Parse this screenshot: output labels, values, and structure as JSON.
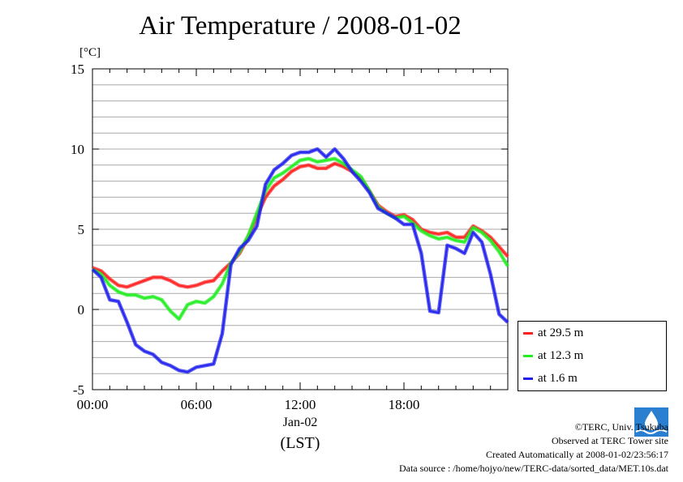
{
  "chart_data": {
    "type": "line",
    "title": "Air Temperature / 2008-01-02",
    "ylabel": "[°C]",
    "x_range_hours": [
      0,
      24
    ],
    "ylim": [
      -5,
      15
    ],
    "yticks": [
      -5,
      0,
      5,
      10,
      15
    ],
    "xtick_labels": [
      "00:00",
      "06:00",
      "12:00",
      "18:00"
    ],
    "xtick_sublabel": "Jan-02",
    "xlabel": "(LST)",
    "grid": true,
    "legend_position": "bottom-right-outside",
    "series": [
      {
        "name": "at 29.5 m",
        "color": "#ff2020",
        "x": [
          0,
          0.5,
          1,
          1.5,
          2,
          2.5,
          3,
          3.5,
          4,
          4.5,
          5,
          5.5,
          6,
          6.5,
          7,
          7.5,
          8,
          8.5,
          9,
          9.5,
          10,
          10.5,
          11,
          11.5,
          12,
          12.5,
          13,
          13.5,
          14,
          14.5,
          15,
          15.5,
          16,
          16.5,
          17,
          17.5,
          18,
          18.5,
          19,
          19.5,
          20,
          20.5,
          21,
          21.5,
          22,
          22.5,
          23,
          23.5,
          24
        ],
        "values": [
          2.6,
          2.4,
          1.9,
          1.5,
          1.4,
          1.6,
          1.8,
          2.0,
          2.0,
          1.8,
          1.5,
          1.4,
          1.5,
          1.7,
          1.8,
          2.4,
          2.9,
          3.5,
          4.5,
          5.8,
          7.0,
          7.7,
          8.1,
          8.6,
          8.9,
          9.0,
          8.8,
          8.8,
          9.1,
          8.9,
          8.6,
          8.2,
          7.4,
          6.5,
          6.1,
          5.8,
          5.9,
          5.6,
          5.0,
          4.8,
          4.7,
          4.8,
          4.5,
          4.5,
          5.2,
          4.9,
          4.5,
          3.9,
          3.3
        ]
      },
      {
        "name": "at 12.3 m",
        "color": "#20ee20",
        "x": [
          0,
          0.5,
          1,
          1.5,
          2,
          2.5,
          3,
          3.5,
          4,
          4.5,
          5,
          5.5,
          6,
          6.5,
          7,
          7.5,
          8,
          8.5,
          9,
          9.5,
          10,
          10.5,
          11,
          11.5,
          12,
          12.5,
          13,
          13.5,
          14,
          14.5,
          15,
          15.5,
          16,
          16.5,
          17,
          17.5,
          18,
          18.5,
          19,
          19.5,
          20,
          20.5,
          21,
          21.5,
          22,
          22.5,
          23,
          23.5,
          24
        ],
        "values": [
          2.5,
          2.2,
          1.5,
          1.1,
          0.9,
          0.9,
          0.7,
          0.8,
          0.6,
          -0.1,
          -0.6,
          0.3,
          0.5,
          0.4,
          0.8,
          1.6,
          2.9,
          3.6,
          4.6,
          6.0,
          7.4,
          8.2,
          8.5,
          8.9,
          9.3,
          9.4,
          9.2,
          9.3,
          9.4,
          9.1,
          8.7,
          8.3,
          7.4,
          6.4,
          6.0,
          5.7,
          5.8,
          5.4,
          4.9,
          4.6,
          4.4,
          4.5,
          4.3,
          4.2,
          5.1,
          4.8,
          4.3,
          3.6,
          2.7
        ]
      },
      {
        "name": "at 1.6 m",
        "color": "#2020ee",
        "x": [
          0,
          0.5,
          1,
          1.5,
          2,
          2.5,
          3,
          3.5,
          4,
          4.5,
          5,
          5.5,
          6,
          6.5,
          7,
          7.5,
          8,
          8.5,
          9,
          9.5,
          10,
          10.5,
          11,
          11.5,
          12,
          12.5,
          13,
          13.5,
          14,
          14.5,
          15,
          15.5,
          16,
          16.5,
          17,
          17.5,
          18,
          18.5,
          19,
          19.5,
          20,
          20.5,
          21,
          21.5,
          22,
          22.5,
          23,
          23.5,
          24
        ],
        "values": [
          2.5,
          2.0,
          0.6,
          0.5,
          -0.8,
          -2.2,
          -2.6,
          -2.8,
          -3.3,
          -3.5,
          -3.8,
          -3.9,
          -3.6,
          -3.5,
          -3.4,
          -1.5,
          2.8,
          3.8,
          4.3,
          5.2,
          7.8,
          8.7,
          9.1,
          9.6,
          9.8,
          9.8,
          10.0,
          9.5,
          10.0,
          9.4,
          8.6,
          8.0,
          7.3,
          6.3,
          6.0,
          5.7,
          5.3,
          5.3,
          3.5,
          -0.1,
          -0.2,
          4.0,
          3.8,
          3.5,
          4.8,
          4.2,
          2.2,
          -0.3,
          -0.8
        ]
      }
    ]
  },
  "credits": {
    "line1": "©TERC, Univ. Tsukuba",
    "line2": "Observed at TERC Tower site",
    "line3": "Created Automatically at 2008-01-02/23:56:17",
    "line4": "Data source : /home/hojyo/new/TERC-data/sorted_data/MET.10s.dat"
  },
  "logo": {
    "icon": "terc-logo-icon",
    "text": "TERC"
  }
}
